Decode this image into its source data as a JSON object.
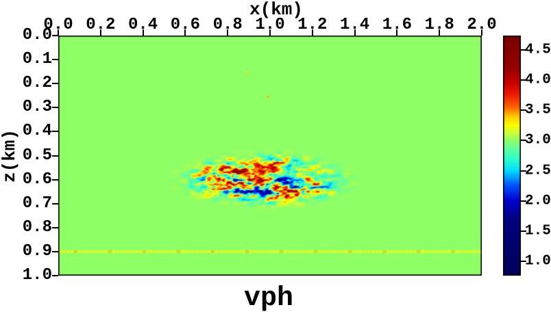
{
  "figure": {
    "title": "vph",
    "x_axis": {
      "label": "x(km)",
      "tick_labels": [
        "0.0",
        "0.2",
        "0.4",
        "0.6",
        "0.8",
        "1.0",
        "1.2",
        "1.4",
        "1.6",
        "1.8",
        "2.0"
      ]
    },
    "z_axis": {
      "label": "z(km)",
      "tick_labels": [
        "0.0",
        "0.1",
        "0.2",
        "0.3",
        "0.4",
        "0.5",
        "0.6",
        "0.7",
        "0.8",
        "0.9",
        "1.0"
      ]
    },
    "colorbar": {
      "tick_labels": [
        "4.5",
        "4.0",
        "3.5",
        "3.0",
        "2.5",
        "2.0",
        "1.5",
        "1.0"
      ]
    }
  },
  "chart_data": {
    "type": "heatmap",
    "title": "vph",
    "xlabel": "x(km)",
    "ylabel": "z(km)",
    "x_range_km": [
      0.0,
      2.0
    ],
    "z_range_km": [
      0.0,
      1.0
    ],
    "x_ticks": [
      0.0,
      0.2,
      0.4,
      0.6,
      0.8,
      1.0,
      1.2,
      1.4,
      1.6,
      1.8,
      2.0
    ],
    "z_ticks": [
      0.0,
      0.1,
      0.2,
      0.3,
      0.4,
      0.5,
      0.6,
      0.7,
      0.8,
      0.9,
      1.0
    ],
    "grid": false,
    "legend": "none",
    "background_value_km_s": 3.0,
    "background_color": "#8fff66",
    "colorbar": {
      "orientation": "vertical-right",
      "vmin": 0.76,
      "vmax": 4.74,
      "ticks": [
        4.5,
        4.0,
        3.5,
        3.0,
        2.5,
        2.0,
        1.5,
        1.0
      ],
      "colormap_stops": [
        [
          0.76,
          "#00005a"
        ],
        [
          1.7,
          "#000080"
        ],
        [
          2.0,
          "#0000cd"
        ],
        [
          2.25,
          "#0050ff"
        ],
        [
          2.5,
          "#00ddff"
        ],
        [
          2.7,
          "#30ffc8"
        ],
        [
          2.88,
          "#66ff99"
        ],
        [
          3.0,
          "#8fff66"
        ],
        [
          3.12,
          "#c8ff3c"
        ],
        [
          3.25,
          "#ffff00"
        ],
        [
          3.4,
          "#ffc800"
        ],
        [
          3.55,
          "#ff6400"
        ],
        [
          3.75,
          "#ee1e00"
        ],
        [
          3.95,
          "#c80000"
        ],
        [
          4.2,
          "#960000"
        ],
        [
          4.74,
          "#780000"
        ]
      ]
    },
    "anomaly_patch": {
      "description": "horizontally elongated random-media velocity perturbation patch",
      "center_x_km": 0.98,
      "center_z_km": 0.6,
      "half_width_km": 0.31,
      "half_height_km": 0.085,
      "value_min_km_s": 1.0,
      "value_max_km_s": 4.7,
      "seed": 11
    },
    "marker_line": {
      "z_km": 0.9,
      "marker": "x",
      "color": "#ffff00",
      "alt_color": "#ffc300",
      "spacing_km": 0.018
    },
    "specks": [
      {
        "x_km": 0.89,
        "z_km": 0.155,
        "color": "#ffe000"
      },
      {
        "x_km": 0.99,
        "z_km": 0.255,
        "color": "#ffb400"
      }
    ]
  }
}
